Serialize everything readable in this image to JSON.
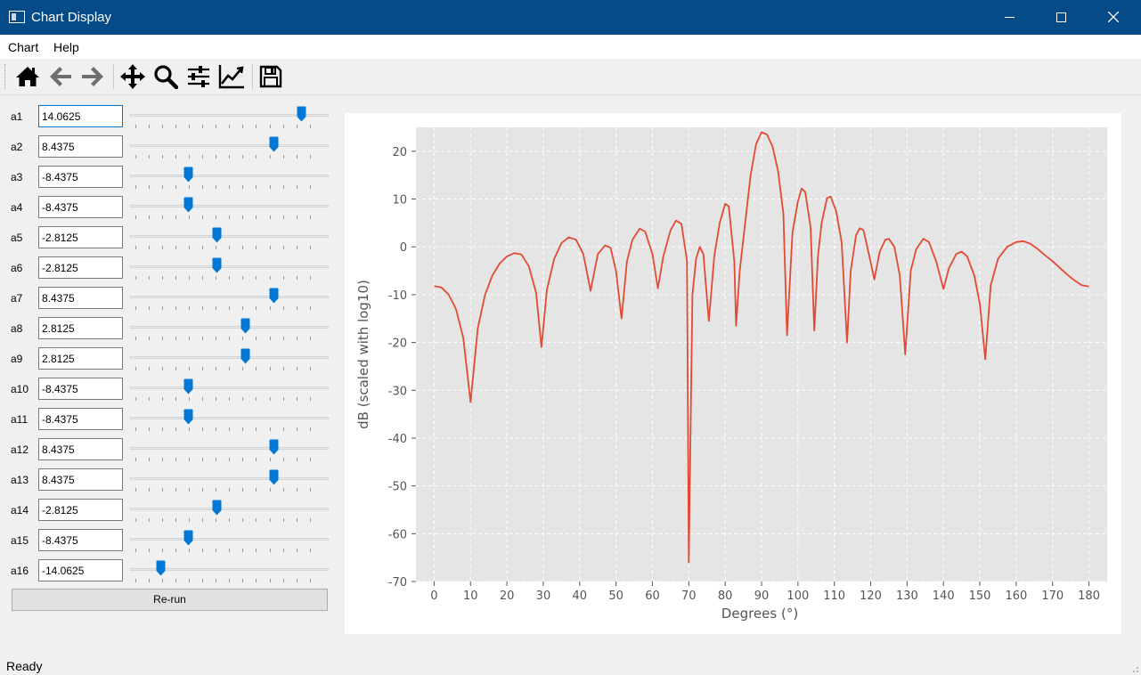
{
  "window": {
    "title": "Chart Display"
  },
  "menu": {
    "items": [
      "Chart",
      "Help"
    ]
  },
  "toolbar": {
    "buttons": [
      "home-icon",
      "back-arrow-icon",
      "forward-arrow-icon",
      "pan-icon",
      "zoom-icon",
      "configure-subplots-icon",
      "edit-axis-icon",
      "save-icon"
    ]
  },
  "sliders": {
    "min": -20,
    "max": 20,
    "ticks": 14,
    "rows": [
      {
        "label": "a1",
        "value": "14.0625"
      },
      {
        "label": "a2",
        "value": "8.4375"
      },
      {
        "label": "a3",
        "value": "-8.4375"
      },
      {
        "label": "a4",
        "value": "-8.4375"
      },
      {
        "label": "a5",
        "value": "-2.8125"
      },
      {
        "label": "a6",
        "value": "-2.8125"
      },
      {
        "label": "a7",
        "value": "8.4375"
      },
      {
        "label": "a8",
        "value": "2.8125"
      },
      {
        "label": "a9",
        "value": "2.8125"
      },
      {
        "label": "a10",
        "value": "-8.4375"
      },
      {
        "label": "a11",
        "value": "-8.4375"
      },
      {
        "label": "a12",
        "value": "8.4375"
      },
      {
        "label": "a13",
        "value": "8.4375"
      },
      {
        "label": "a14",
        "value": "-2.8125"
      },
      {
        "label": "a15",
        "value": "-8.4375"
      },
      {
        "label": "a16",
        "value": "-14.0625"
      }
    ]
  },
  "rerun_label": "Re-run",
  "status": "Ready",
  "colors": {
    "titlebar": "#044b87",
    "line": "#e24a33",
    "plot_bg": "#e5e5e5",
    "handle": "#0078d7"
  },
  "chart_data": {
    "type": "line",
    "title": "",
    "xlabel": "Degrees (°)",
    "ylabel": "dB (scaled with log10)",
    "xlim": [
      -5,
      185
    ],
    "ylim": [
      -70,
      25
    ],
    "xticks": [
      0,
      10,
      20,
      30,
      40,
      50,
      60,
      70,
      80,
      90,
      100,
      110,
      120,
      130,
      140,
      150,
      160,
      170,
      180
    ],
    "yticks": [
      -70,
      -60,
      -50,
      -40,
      -30,
      -20,
      -10,
      0,
      10,
      20
    ],
    "grid": true,
    "series": [
      {
        "name": "",
        "points": [
          [
            0,
            -8.2
          ],
          [
            2,
            -8.5
          ],
          [
            4,
            -10
          ],
          [
            6,
            -13
          ],
          [
            8,
            -19
          ],
          [
            10,
            -32.5
          ],
          [
            12,
            -17
          ],
          [
            14,
            -10
          ],
          [
            16,
            -6
          ],
          [
            18,
            -3.5
          ],
          [
            20,
            -2
          ],
          [
            22,
            -1.3
          ],
          [
            24,
            -1.6
          ],
          [
            26,
            -4
          ],
          [
            28,
            -9.5
          ],
          [
            29.5,
            -21
          ],
          [
            31,
            -9
          ],
          [
            33,
            -2.5
          ],
          [
            35,
            0.8
          ],
          [
            37,
            2
          ],
          [
            39,
            1.5
          ],
          [
            41,
            -1.5
          ],
          [
            43,
            -9.2
          ],
          [
            45,
            -1.5
          ],
          [
            47,
            0.3
          ],
          [
            48.5,
            -0.2
          ],
          [
            50,
            -5
          ],
          [
            51.5,
            -15
          ],
          [
            53,
            -3
          ],
          [
            54.5,
            1.5
          ],
          [
            56.5,
            3.8
          ],
          [
            58,
            3.2
          ],
          [
            60,
            -1.5
          ],
          [
            61.5,
            -8.7
          ],
          [
            63,
            -2
          ],
          [
            65,
            3.5
          ],
          [
            66.5,
            5.5
          ],
          [
            68,
            4.8
          ],
          [
            69.5,
            -3
          ],
          [
            70,
            -66
          ],
          [
            71,
            -10
          ],
          [
            72,
            -2.5
          ],
          [
            73,
            0
          ],
          [
            74,
            -1.5
          ],
          [
            75.5,
            -15.5
          ],
          [
            77,
            -2
          ],
          [
            78.5,
            5
          ],
          [
            80,
            9
          ],
          [
            81,
            8.5
          ],
          [
            82.5,
            -3
          ],
          [
            83,
            -16.5
          ],
          [
            84,
            -5
          ],
          [
            85.5,
            5
          ],
          [
            87,
            15
          ],
          [
            88.5,
            21.5
          ],
          [
            90,
            24
          ],
          [
            91.5,
            23.5
          ],
          [
            93,
            21
          ],
          [
            94.5,
            16
          ],
          [
            96,
            7
          ],
          [
            97,
            -18.5
          ],
          [
            98.5,
            3
          ],
          [
            100,
            9.5
          ],
          [
            101,
            12.2
          ],
          [
            102,
            11.5
          ],
          [
            103.5,
            4
          ],
          [
            104.5,
            -17.5
          ],
          [
            105.5,
            -2
          ],
          [
            106.5,
            5
          ],
          [
            108,
            10.2
          ],
          [
            109,
            10.5
          ],
          [
            110.5,
            7.5
          ],
          [
            112,
            1
          ],
          [
            113.5,
            -20
          ],
          [
            114.5,
            -5
          ],
          [
            116,
            2.5
          ],
          [
            117,
            3.9
          ],
          [
            118,
            3.5
          ],
          [
            119.5,
            -1.5
          ],
          [
            121,
            -6.8
          ],
          [
            122.5,
            -1
          ],
          [
            124,
            1.5
          ],
          [
            125,
            1.7
          ],
          [
            126.5,
            0
          ],
          [
            128,
            -6
          ],
          [
            129.5,
            -22.5
          ],
          [
            131,
            -5
          ],
          [
            132.5,
            -0.5
          ],
          [
            134.5,
            1.7
          ],
          [
            136,
            1
          ],
          [
            138,
            -3
          ],
          [
            140,
            -8.8
          ],
          [
            141.5,
            -4.5
          ],
          [
            143.5,
            -1.5
          ],
          [
            145,
            -1
          ],
          [
            146.5,
            -2
          ],
          [
            148.5,
            -6
          ],
          [
            150,
            -12
          ],
          [
            151.5,
            -23.5
          ],
          [
            153,
            -8
          ],
          [
            155,
            -2.5
          ],
          [
            157.5,
            0
          ],
          [
            160,
            1
          ],
          [
            162,
            1.2
          ],
          [
            164,
            0.6
          ],
          [
            166,
            -0.5
          ],
          [
            168,
            -1.8
          ],
          [
            170,
            -3
          ],
          [
            172,
            -4.4
          ],
          [
            174,
            -5.8
          ],
          [
            176,
            -7
          ],
          [
            178,
            -8
          ],
          [
            180,
            -8.3
          ]
        ]
      }
    ]
  }
}
